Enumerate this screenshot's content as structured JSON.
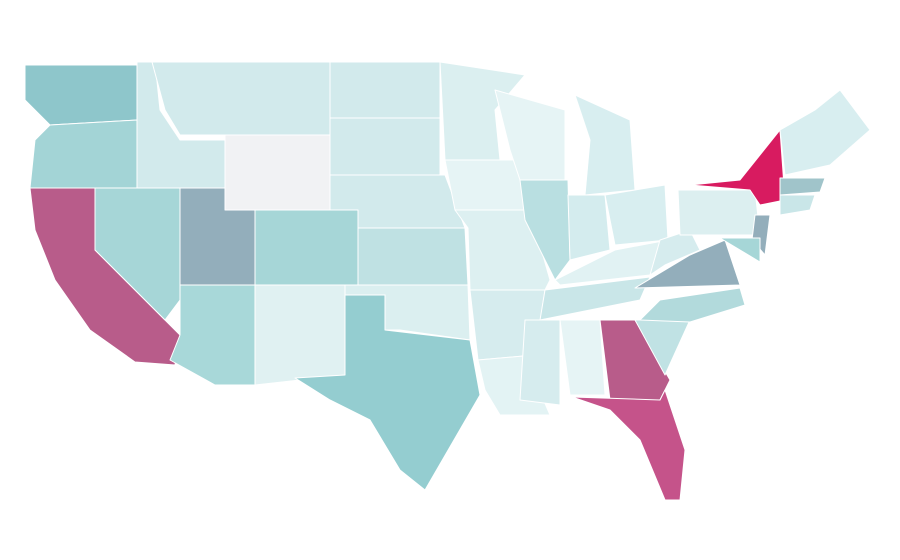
{
  "map": {
    "background": "#ffffff",
    "border": "#ffffff",
    "regions": [
      {
        "fill": "#8ec6cb"
      },
      {
        "fill": "#a3d4d6"
      },
      {
        "fill": "#b85c8a"
      },
      {
        "fill": "#a6d6d7"
      },
      {
        "fill": "#d2eaec"
      },
      {
        "fill": "#d2eaec"
      },
      {
        "fill": "#f1f2f4"
      },
      {
        "fill": "#93aebb"
      },
      {
        "fill": "#a6d6d7"
      },
      {
        "fill": "#a8d8d9"
      },
      {
        "fill": "#e0f1f2"
      },
      {
        "fill": "#d2eaec"
      },
      {
        "fill": "#d2eaec"
      },
      {
        "fill": "#d2eaec"
      },
      {
        "fill": "#bfe1e3"
      },
      {
        "fill": "#dbeff0"
      },
      {
        "fill": "#94cdd0"
      },
      {
        "fill": "#dbeff0"
      },
      {
        "fill": "#e6f4f5"
      },
      {
        "fill": "#ddf0f1"
      },
      {
        "fill": "#d6ecee"
      },
      {
        "fill": "#e3f3f4"
      },
      {
        "fill": "#e6f4f5"
      },
      {
        "fill": "#b9dfe1"
      },
      {
        "fill": "#d8eef0"
      },
      {
        "fill": "#d4ecee"
      },
      {
        "fill": "#d8eef0"
      },
      {
        "fill": "#e1f2f3"
      },
      {
        "fill": "#c9e6e8"
      },
      {
        "fill": "#d6ecee"
      },
      {
        "fill": "#e6f4f5"
      },
      {
        "fill": "#b85c8a"
      },
      {
        "fill": "#c5538a"
      },
      {
        "fill": "#c0e2e4"
      },
      {
        "fill": "#b2dadc"
      },
      {
        "fill": "#93aebb"
      },
      {
        "fill": "#d6ecee"
      },
      {
        "fill": "#dceff0"
      },
      {
        "fill": "#d81b60"
      },
      {
        "fill": "#93aebb"
      },
      {
        "fill": "#a6d6d7"
      },
      {
        "fill": "#d8eef0"
      },
      {
        "fill": "#a0c4ca"
      },
      {
        "fill": "#c9e6e8"
      }
    ]
  }
}
